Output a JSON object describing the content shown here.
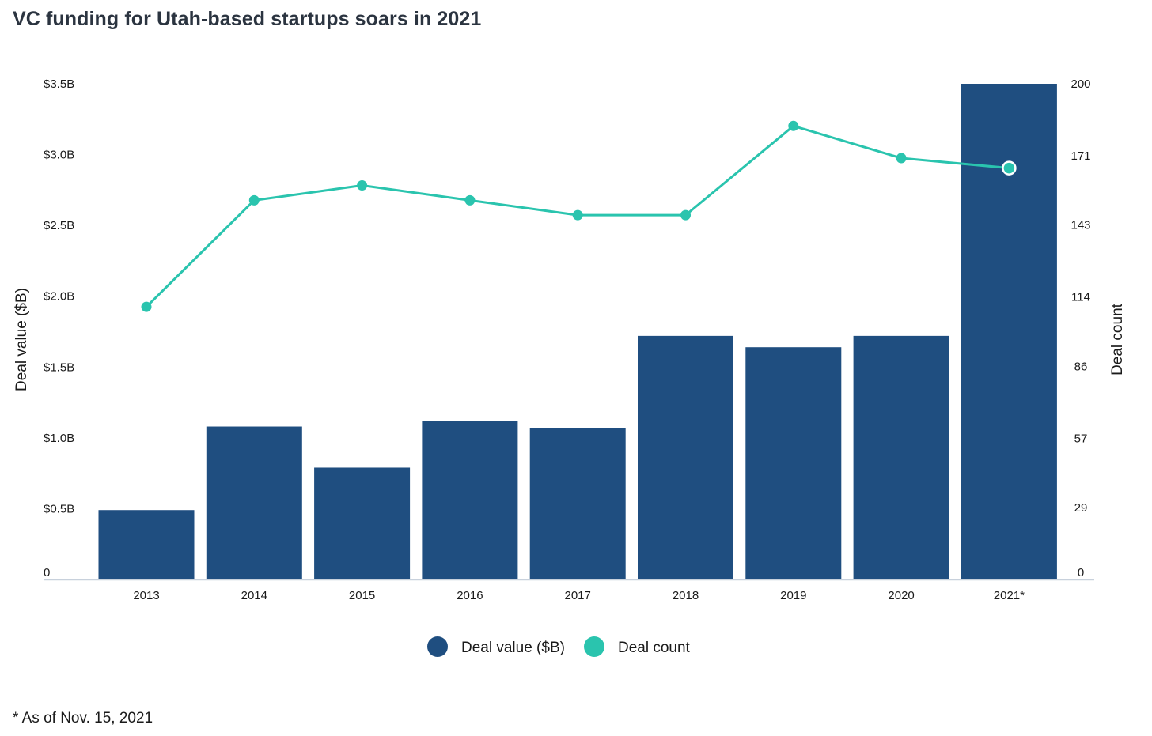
{
  "title": "VC funding for Utah-based startups soars in 2021",
  "footnote": "* As of Nov. 15, 2021",
  "colors": {
    "bar": "#1f4e80",
    "line": "#2ac4ae",
    "axis": "#c8d1dc"
  },
  "chart_data": {
    "type": "bar",
    "categories": [
      "2013",
      "2014",
      "2015",
      "2016",
      "2017",
      "2018",
      "2019",
      "2020",
      "2021*"
    ],
    "series": [
      {
        "name": "Deal value ($B)",
        "type": "bar",
        "axis": "left",
        "values": [
          0.49,
          1.08,
          0.79,
          1.12,
          1.07,
          1.72,
          1.64,
          1.72,
          3.5
        ]
      },
      {
        "name": "Deal count",
        "type": "line",
        "axis": "right",
        "values": [
          110,
          153,
          159,
          153,
          147,
          147,
          183,
          170,
          166
        ]
      }
    ],
    "ylabel": "Deal value ($B)",
    "y2label": "Deal count",
    "ylim": [
      0,
      3.5
    ],
    "y2lim": [
      0,
      200
    ],
    "yticks": [
      0,
      0.5,
      1.0,
      1.5,
      2.0,
      2.5,
      3.0,
      3.5
    ],
    "ytick_labels": [
      "0",
      "$0.5B",
      "$1.0B",
      "$1.5B",
      "$2.0B",
      "$2.5B",
      "$3.0B",
      "$3.5B"
    ],
    "y2ticks": [
      0,
      29,
      57,
      86,
      114,
      143,
      171,
      200
    ],
    "y2tick_labels": [
      "0",
      "29",
      "57",
      "86",
      "114",
      "143",
      "171",
      "200"
    ],
    "legend": "bottom-center",
    "grid": false
  }
}
